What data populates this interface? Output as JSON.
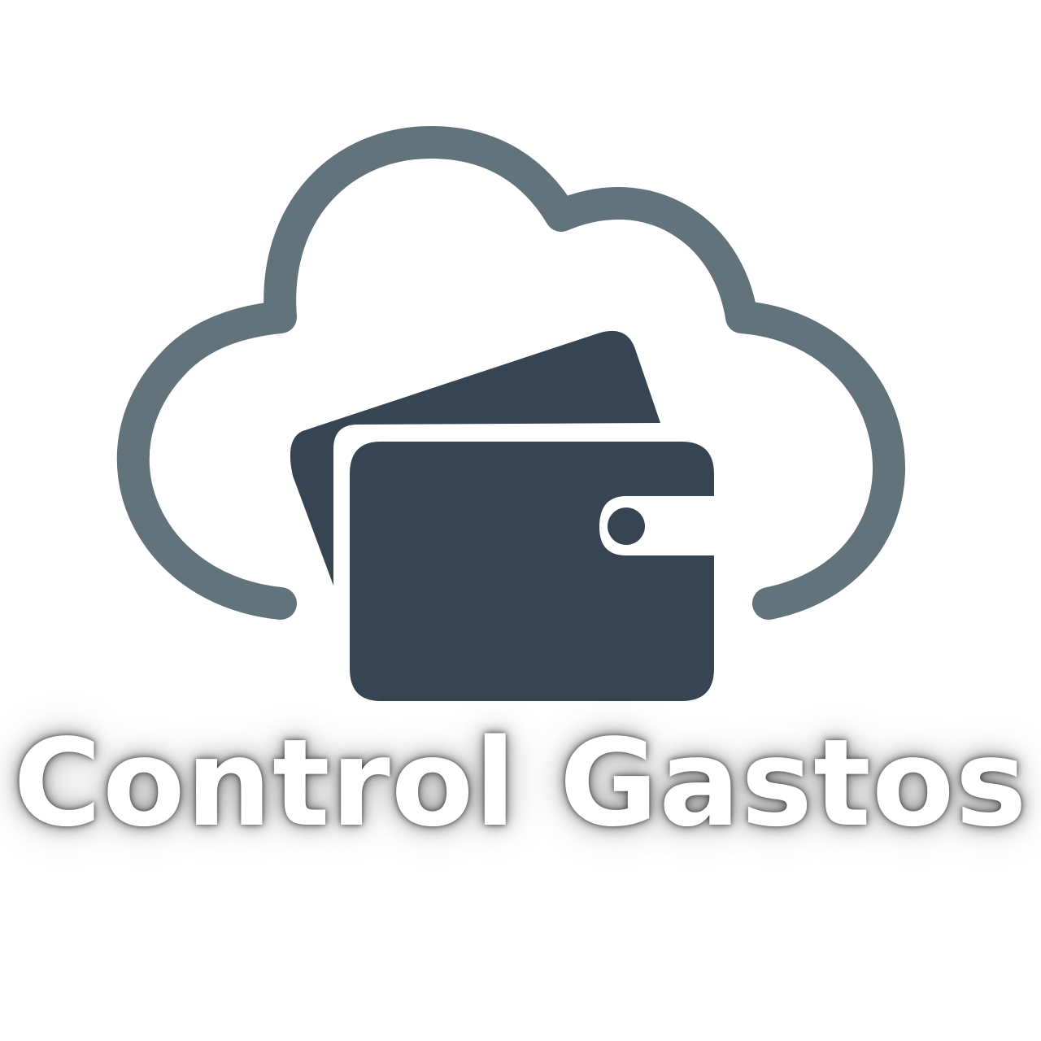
{
  "brand": {
    "wordmark": "Control Gastos"
  },
  "icons": {
    "cloud": "cloud-outline-icon",
    "wallet": "wallet-icon",
    "card": "card-icon"
  },
  "colors": {
    "background": "#ffffff",
    "cloud_stroke": "#63737c",
    "wallet_fill": "#374552",
    "wordmark_fill": "#ffffff"
  }
}
